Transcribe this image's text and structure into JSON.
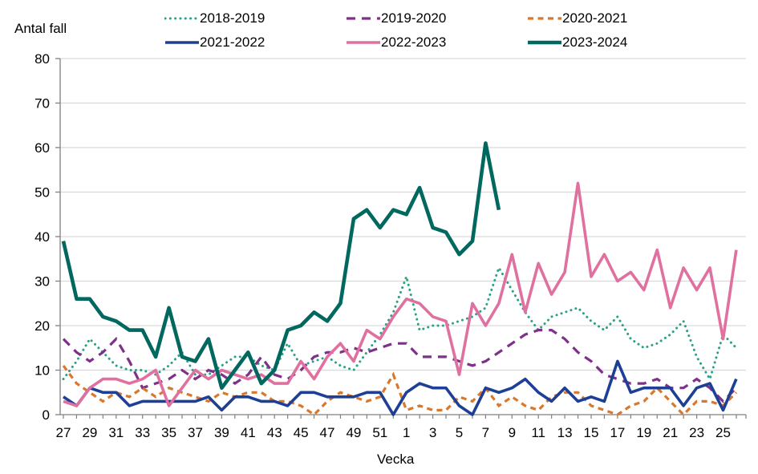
{
  "axes": {
    "y_title": "Antal fall",
    "x_title": "Vecka"
  },
  "chart_data": {
    "type": "line",
    "title": "",
    "xlabel": "Vecka",
    "ylabel": "Antal fall",
    "ylim": [
      0,
      80
    ],
    "ytick_step": 10,
    "grid": "horizontal-only",
    "legend_position": "top-center",
    "x_label_every": 2,
    "categories": [
      "27",
      "28",
      "29",
      "30",
      "31",
      "32",
      "33",
      "34",
      "35",
      "36",
      "37",
      "38",
      "39",
      "40",
      "41",
      "42",
      "43",
      "44",
      "45",
      "46",
      "47",
      "48",
      "49",
      "50",
      "51",
      "52",
      "1",
      "2",
      "3",
      "4",
      "5",
      "6",
      "7",
      "8",
      "9",
      "10",
      "11",
      "12",
      "13",
      "14",
      "15",
      "16",
      "17",
      "18",
      "19",
      "20",
      "21",
      "22",
      "23",
      "24",
      "25",
      "26"
    ],
    "series": [
      {
        "name": "2018-2019",
        "color": "#2aa187",
        "style": "dotted",
        "values": [
          8,
          12,
          17,
          14,
          11,
          10,
          10,
          9,
          11,
          14,
          9,
          9,
          11,
          13,
          13,
          11,
          10,
          16,
          11,
          12,
          13,
          11,
          10,
          14,
          18,
          23,
          31,
          19,
          20,
          20,
          21,
          22,
          24,
          33,
          28,
          23,
          19,
          22,
          23,
          24,
          21,
          19,
          22,
          17,
          15,
          16,
          18,
          21,
          13,
          8,
          18,
          15
        ]
      },
      {
        "name": "2019-2020",
        "color": "#7d3189",
        "style": "dashed",
        "values": [
          17,
          14,
          12,
          14,
          17,
          12,
          6,
          7,
          8,
          10,
          8,
          10,
          9,
          7,
          9,
          13,
          9,
          8,
          10,
          13,
          14,
          14,
          15,
          14,
          15,
          16,
          16,
          13,
          13,
          13,
          12,
          11,
          12,
          14,
          16,
          18,
          19,
          19,
          17,
          14,
          12,
          9,
          8,
          7,
          7,
          8,
          6,
          6,
          8,
          6,
          3,
          6
        ]
      },
      {
        "name": "2020-2021",
        "color": "#d9782d",
        "style": "dashed-short",
        "values": [
          11,
          7,
          5,
          3,
          5,
          4,
          6,
          4,
          6,
          5,
          4,
          3,
          5,
          4,
          5,
          5,
          3,
          3,
          2,
          0,
          3,
          5,
          4,
          3,
          4,
          9,
          1,
          2,
          1,
          1,
          4,
          3,
          6,
          2,
          4,
          2,
          1,
          4,
          5,
          5,
          2,
          1,
          0,
          2,
          3,
          6,
          3,
          0,
          3,
          3,
          2,
          5
        ]
      },
      {
        "name": "2021-2022",
        "color": "#1e3f96",
        "style": "solid",
        "values": [
          4,
          2,
          6,
          5,
          5,
          2,
          3,
          3,
          3,
          3,
          3,
          4,
          1,
          4,
          4,
          3,
          3,
          2,
          5,
          5,
          4,
          4,
          4,
          5,
          5,
          0,
          5,
          7,
          6,
          6,
          2,
          0,
          6,
          5,
          6,
          8,
          5,
          3,
          6,
          3,
          4,
          3,
          12,
          5,
          6,
          6,
          6,
          2,
          6,
          7,
          1,
          8
        ]
      },
      {
        "name": "2022-2023",
        "color": "#e0709f",
        "style": "solid",
        "values": [
          3,
          2,
          6,
          8,
          8,
          7,
          8,
          10,
          2,
          6,
          10,
          8,
          10,
          9,
          8,
          9,
          7,
          7,
          12,
          8,
          13,
          16,
          12,
          19,
          17,
          22,
          26,
          25,
          22,
          21,
          9,
          25,
          20,
          25,
          36,
          23,
          34,
          27,
          32,
          52,
          31,
          36,
          30,
          32,
          28,
          37,
          24,
          33,
          28,
          33,
          17,
          37
        ]
      },
      {
        "name": "2023-2024",
        "color": "#00685e",
        "style": "solid-thick",
        "values": [
          39,
          26,
          26,
          22,
          21,
          19,
          19,
          13,
          24,
          13,
          12,
          17,
          6,
          10,
          14,
          7,
          10,
          19,
          20,
          23,
          21,
          25,
          44,
          46,
          42,
          46,
          45,
          51,
          42,
          41,
          36,
          39,
          61,
          46,
          null,
          null,
          null,
          null,
          null,
          null,
          null,
          null,
          null,
          null,
          null,
          null,
          null,
          null,
          null,
          null,
          null,
          null
        ]
      }
    ]
  },
  "colors": {
    "gridline": "#d9d9d9",
    "axis": "#808080",
    "text": "#000000",
    "background": "#ffffff"
  }
}
